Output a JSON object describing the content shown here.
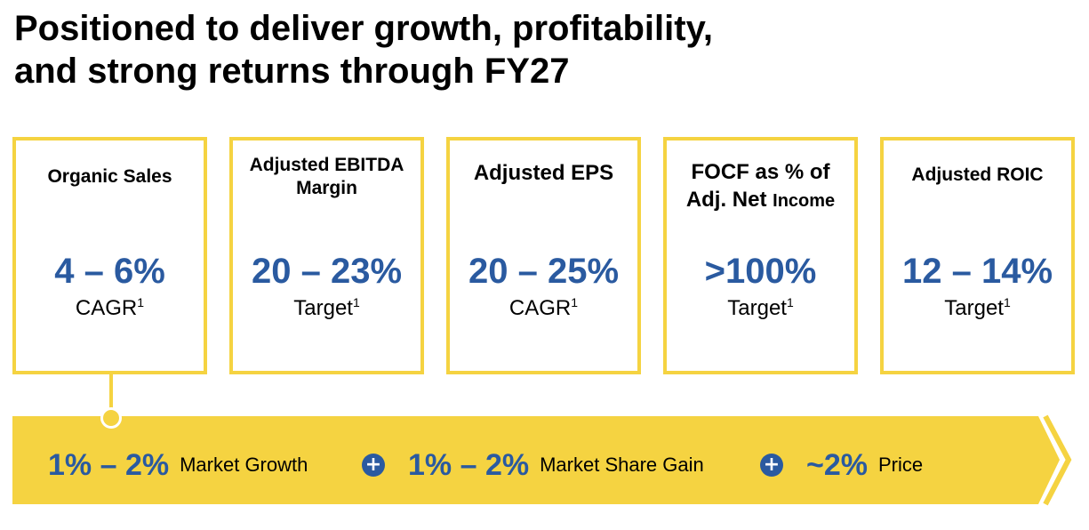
{
  "title": {
    "line1": "Positioned to deliver growth, profitability,",
    "line2": "and strong returns through FY27"
  },
  "cards": [
    {
      "title_a": "Organic Sales",
      "title_b": "",
      "value": "4 – 6%",
      "sub": "CAGR",
      "note": "1"
    },
    {
      "title_a": "Adjusted EBITDA",
      "title_b": "Margin",
      "value": "20 – 23%",
      "sub": "Target",
      "note": "1"
    },
    {
      "title_a": "Adjusted EPS",
      "title_b": "",
      "value": "20 – 25%",
      "sub": "CAGR",
      "note": "1"
    },
    {
      "title_a": "FOCF as % of",
      "title_b": "Adj. Net ",
      "title_b_small": "Income",
      "value": ">100%",
      "sub": "Target",
      "note": "1"
    },
    {
      "title_a": "Adjusted ROIC",
      "title_b": "",
      "value": "12 – 14%",
      "sub": "Target",
      "note": "1"
    }
  ],
  "drivers": [
    {
      "value": "1% – 2%",
      "label": "Market Growth"
    },
    {
      "value": "1% – 2%",
      "label": "Market Share Gain"
    },
    {
      "value": "~2%",
      "label": "Price"
    }
  ],
  "plus_symbol": "+",
  "colors": {
    "accent_yellow": "#f5d341",
    "accent_blue": "#2a5aa0"
  }
}
